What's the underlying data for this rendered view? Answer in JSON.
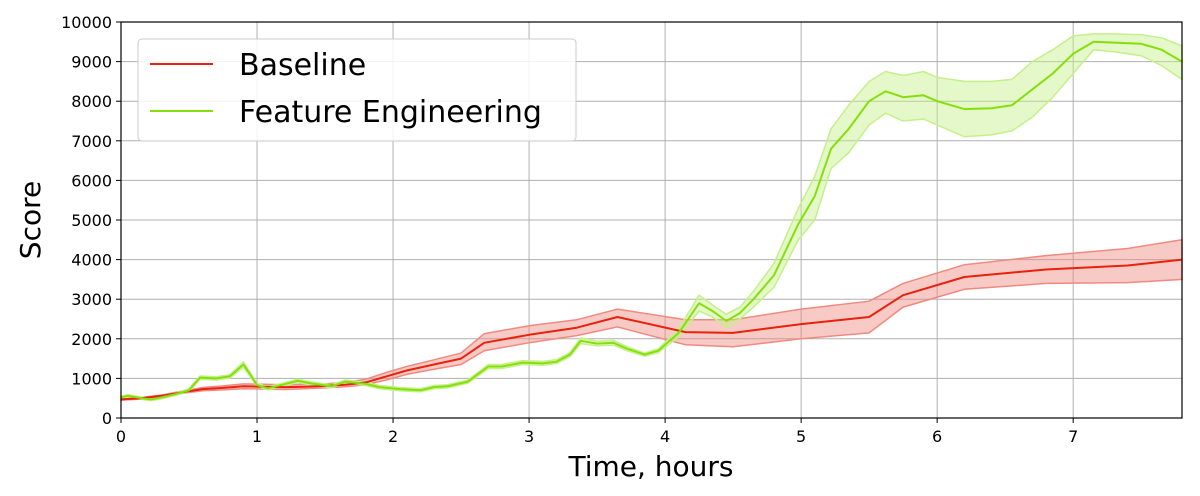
{
  "chart_data": {
    "type": "line",
    "xlabel": "Time, hours",
    "ylabel": "Score",
    "xlim": [
      0,
      7.8
    ],
    "ylim": [
      0,
      10000
    ],
    "x_ticks": [
      0,
      1,
      2,
      3,
      4,
      5,
      6,
      7
    ],
    "y_ticks": [
      0,
      1000,
      2000,
      3000,
      4000,
      5000,
      6000,
      7000,
      8000,
      9000,
      10000
    ],
    "grid": true,
    "legend_position": "top-left",
    "series": [
      {
        "name": "Baseline",
        "color": "#e8220c",
        "band_color": "#f08a80",
        "x": [
          0,
          0.15,
          0.3,
          0.45,
          0.6,
          0.75,
          0.9,
          1.05,
          1.2,
          1.35,
          1.5,
          1.65,
          1.8,
          1.95,
          2.1,
          2.3,
          2.5,
          2.67,
          3.0,
          3.35,
          3.65,
          4.15,
          4.5,
          5.0,
          5.5,
          5.75,
          6.2,
          6.8,
          7.4,
          7.8
        ],
        "y": [
          470,
          500,
          560,
          650,
          730,
          760,
          800,
          790,
          780,
          790,
          810,
          840,
          900,
          1050,
          1200,
          1350,
          1500,
          1900,
          2100,
          2280,
          2550,
          2170,
          2150,
          2370,
          2550,
          3100,
          3560,
          3750,
          3850,
          4000
        ],
        "lower": [
          450,
          480,
          540,
          620,
          690,
          710,
          740,
          730,
          720,
          740,
          760,
          790,
          840,
          960,
          1100,
          1230,
          1350,
          1700,
          1900,
          2080,
          2300,
          1850,
          1800,
          2000,
          2150,
          2800,
          3250,
          3400,
          3420,
          3500
        ],
        "upper": [
          490,
          520,
          580,
          680,
          770,
          810,
          860,
          850,
          840,
          850,
          860,
          900,
          980,
          1150,
          1300,
          1470,
          1640,
          2130,
          2330,
          2480,
          2750,
          2480,
          2480,
          2750,
          2950,
          3400,
          3870,
          4100,
          4280,
          4500
        ]
      },
      {
        "name": "Feature Engineering",
        "color": "#85e00a",
        "band_color": "#c5f08a",
        "x": [
          0,
          0.05,
          0.15,
          0.22,
          0.3,
          0.4,
          0.5,
          0.58,
          0.7,
          0.8,
          0.9,
          0.95,
          1.0,
          1.08,
          1.2,
          1.3,
          1.4,
          1.55,
          1.65,
          1.8,
          1.9,
          2.05,
          2.2,
          2.3,
          2.4,
          2.55,
          2.7,
          2.8,
          2.95,
          3.1,
          3.2,
          3.3,
          3.38,
          3.5,
          3.62,
          3.72,
          3.85,
          3.95,
          4.1,
          4.25,
          4.35,
          4.45,
          4.55,
          4.65,
          4.8,
          4.98,
          5.1,
          5.22,
          5.35,
          5.5,
          5.62,
          5.75,
          5.9,
          6.0,
          6.2,
          6.4,
          6.55,
          6.7,
          6.85,
          7.0,
          7.15,
          7.3,
          7.5,
          7.65,
          7.8
        ],
        "y": [
          520,
          560,
          500,
          470,
          520,
          600,
          700,
          1020,
          1000,
          1050,
          1350,
          1100,
          830,
          750,
          850,
          940,
          870,
          800,
          920,
          860,
          780,
          730,
          700,
          780,
          800,
          920,
          1300,
          1300,
          1400,
          1380,
          1420,
          1600,
          1950,
          1880,
          1900,
          1750,
          1600,
          1700,
          2150,
          2900,
          2700,
          2450,
          2650,
          3000,
          3600,
          4900,
          5600,
          6800,
          7300,
          8000,
          8250,
          8100,
          8150,
          8000,
          7800,
          7820,
          7900,
          8300,
          8700,
          9200,
          9500,
          9480,
          9450,
          9300,
          9000
        ],
        "lower": [
          490,
          530,
          470,
          440,
          490,
          570,
          660,
          980,
          960,
          1010,
          1280,
          1050,
          790,
          710,
          810,
          900,
          830,
          760,
          880,
          820,
          740,
          690,
          660,
          740,
          760,
          880,
          1250,
          1250,
          1350,
          1330,
          1370,
          1550,
          1880,
          1820,
          1840,
          1700,
          1560,
          1650,
          2050,
          2700,
          2550,
          2280,
          2500,
          2800,
          3300,
          4500,
          5000,
          6300,
          6700,
          7400,
          7700,
          7500,
          7550,
          7400,
          7100,
          7150,
          7250,
          7600,
          8100,
          8700,
          9300,
          9250,
          9150,
          8900,
          8550
        ],
        "upper": [
          550,
          590,
          530,
          500,
          550,
          630,
          740,
          1060,
          1040,
          1090,
          1420,
          1150,
          870,
          790,
          890,
          980,
          910,
          840,
          960,
          900,
          820,
          770,
          740,
          820,
          840,
          960,
          1350,
          1350,
          1450,
          1430,
          1470,
          1650,
          2020,
          1940,
          1960,
          1800,
          1640,
          1750,
          2250,
          3100,
          2850,
          2620,
          2800,
          3200,
          3900,
          5300,
          6100,
          7300,
          7900,
          8500,
          8750,
          8650,
          8750,
          8600,
          8500,
          8500,
          8550,
          9000,
          9300,
          9650,
          9700,
          9700,
          9680,
          9600,
          9400
        ]
      }
    ]
  }
}
